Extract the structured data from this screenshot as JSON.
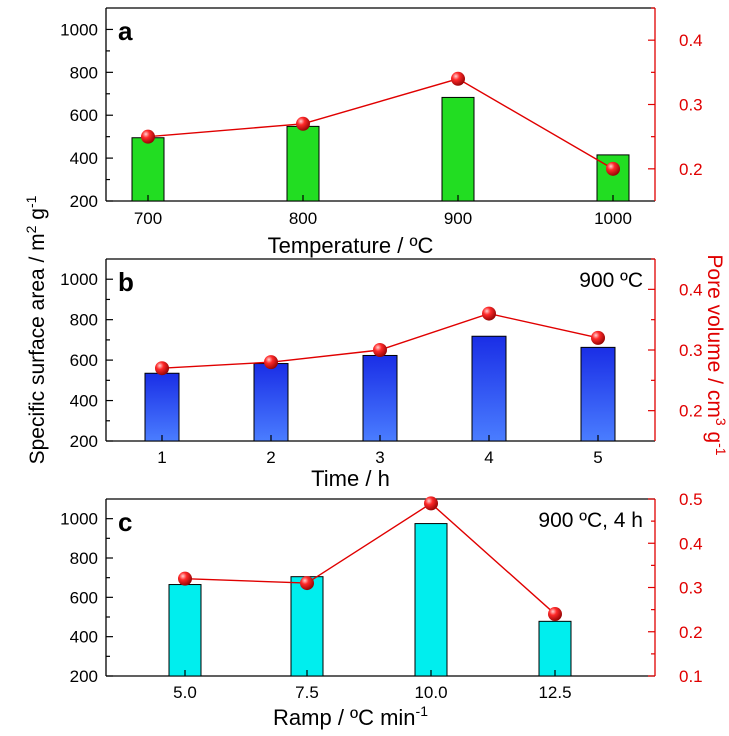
{
  "chart_data": [
    {
      "type": "bar",
      "panel": "a",
      "annotation": "",
      "xlabel": "Temperature / ºC",
      "categories": [
        "700",
        "800",
        "900",
        "1000"
      ],
      "bar_color": "#22dd22",
      "bar_gradient": false,
      "ylim": [
        200,
        1100
      ],
      "y_ticks": [
        200,
        400,
        600,
        800,
        1000
      ],
      "ylim_right": [
        0.15,
        0.45
      ],
      "y2_ticks": [
        0.2,
        0.3,
        0.4
      ],
      "series": [
        {
          "name": "Specific surface area",
          "axis": "left",
          "values": [
            495,
            548,
            683,
            415
          ]
        },
        {
          "name": "Pore volume",
          "axis": "right",
          "values": [
            0.25,
            0.27,
            0.34,
            0.2
          ]
        }
      ]
    },
    {
      "type": "bar",
      "panel": "b",
      "annotation": "900 ºC",
      "xlabel": "Time / h",
      "categories": [
        "1",
        "2",
        "3",
        "4",
        "5"
      ],
      "bar_color": "#1a2ee6",
      "bar_gradient": true,
      "ylim": [
        200,
        1100
      ],
      "y_ticks": [
        200,
        400,
        600,
        800,
        1000
      ],
      "ylim_right": [
        0.15,
        0.45
      ],
      "y2_ticks": [
        0.2,
        0.3,
        0.4
      ],
      "series": [
        {
          "name": "Specific surface area",
          "axis": "left",
          "values": [
            535,
            583,
            623,
            718,
            663
          ]
        },
        {
          "name": "Pore volume",
          "axis": "right",
          "values": [
            0.27,
            0.28,
            0.3,
            0.36,
            0.32
          ]
        }
      ]
    },
    {
      "type": "bar",
      "panel": "c",
      "annotation": "900 ºC, 4 h",
      "xlabel": "Ramp / ºC min",
      "xlabel_sup": "-1",
      "categories": [
        "5.0",
        "7.5",
        "10.0",
        "12.5"
      ],
      "bar_color": "#00eeee",
      "bar_gradient": false,
      "ylim": [
        200,
        1100
      ],
      "y_ticks": [
        200,
        400,
        600,
        800,
        1000
      ],
      "ylim_right": [
        0.1,
        0.5
      ],
      "y2_ticks": [
        0.1,
        0.2,
        0.3,
        0.4,
        0.5
      ],
      "series": [
        {
          "name": "Specific surface area",
          "axis": "left",
          "values": [
            665,
            705,
            975,
            478
          ]
        },
        {
          "name": "Pore volume",
          "axis": "right",
          "values": [
            0.32,
            0.31,
            0.49,
            0.24
          ]
        }
      ]
    }
  ],
  "ylabel_left": {
    "text": "Specific surface area / m",
    "sup1": "2",
    "mid": " g",
    "sup2": "-1"
  },
  "ylabel_right": {
    "text": "Pore volume / cm",
    "sup1": "3",
    "mid": " g",
    "sup2": "-1"
  },
  "colors": {
    "right_axis": "#e00000",
    "line": "#e00000",
    "marker": "#e00000"
  }
}
